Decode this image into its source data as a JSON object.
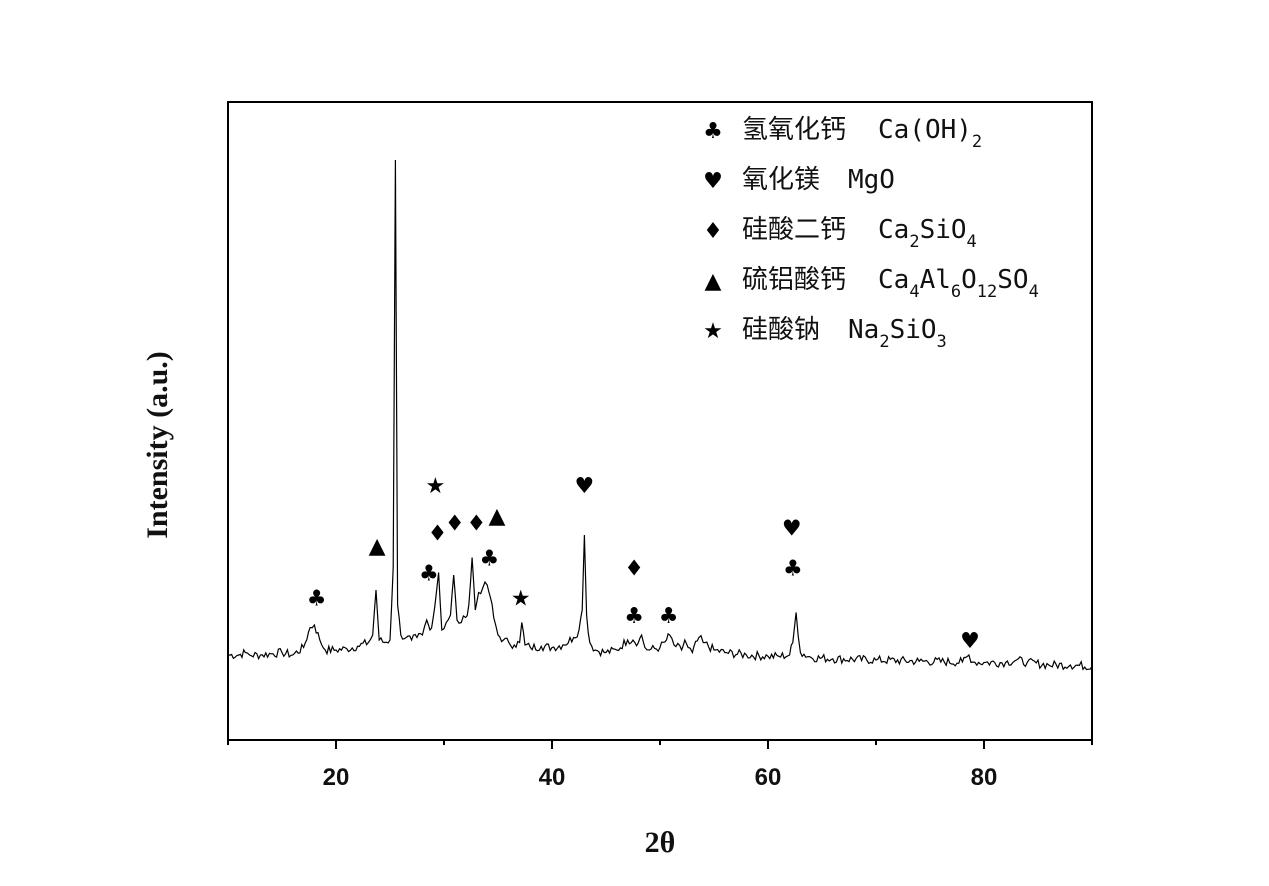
{
  "chart_data": {
    "type": "line",
    "xlabel": "2θ",
    "ylabel": "Intensity (a.u.)",
    "xlim": [
      10,
      90
    ],
    "x_ticks": [
      20,
      40,
      60,
      80
    ],
    "y_ticks_shown": false,
    "grid": false,
    "legend_position": "top-right",
    "series": [
      {
        "x": [
          10,
          11,
          11.6,
          12,
          13,
          14,
          15,
          16,
          17,
          17.6,
          18,
          18.5,
          19,
          20,
          21,
          22,
          23,
          23.4,
          23.7,
          24,
          24.5,
          25,
          25.3,
          25.5,
          25.7,
          26,
          26.5,
          27,
          27.5,
          28,
          28.4,
          28.7,
          29,
          29.3,
          29.5,
          29.8,
          30.2,
          30.6,
          30.9,
          31.2,
          31.6,
          32,
          32.3,
          32.6,
          32.9,
          33.2,
          33.6,
          34,
          34.3,
          34.6,
          35,
          35.5,
          36,
          36.5,
          37,
          37.2,
          37.5,
          38,
          39,
          40,
          41,
          42,
          42.5,
          42.8,
          43,
          43.2,
          43.5,
          44,
          45,
          46,
          47,
          47.5,
          48,
          48.3,
          48.6,
          49,
          50,
          50.6,
          50.9,
          51.3,
          52,
          52.3,
          52.6,
          53,
          53.6,
          54,
          55,
          56,
          58,
          60,
          61,
          62,
          62.3,
          62.6,
          63,
          64,
          66,
          70,
          74,
          78,
          78.6,
          79,
          80,
          82,
          83,
          84,
          86,
          88,
          90
        ],
        "y": [
          1.0,
          1.0,
          1.1,
          1.0,
          1.0,
          1.05,
          1.1,
          1.0,
          1.3,
          2.1,
          2.2,
          1.6,
          1.2,
          1.2,
          1.25,
          1.35,
          1.5,
          1.8,
          3.6,
          1.6,
          1.5,
          1.6,
          4.5,
          20.8,
          3.0,
          1.8,
          1.7,
          1.6,
          1.7,
          1.8,
          2.4,
          2.0,
          2.5,
          3.5,
          4.3,
          2.0,
          2.3,
          2.6,
          4.2,
          2.4,
          2.3,
          2.5,
          3.0,
          4.9,
          2.8,
          3.5,
          3.7,
          3.8,
          3.3,
          2.5,
          1.8,
          1.6,
          1.5,
          1.4,
          1.5,
          2.3,
          1.4,
          1.3,
          1.35,
          1.3,
          1.4,
          1.7,
          2.0,
          2.8,
          5.8,
          2.6,
          1.5,
          1.2,
          1.1,
          1.2,
          1.6,
          1.6,
          1.5,
          1.8,
          1.3,
          1.2,
          1.3,
          1.6,
          1.8,
          1.4,
          1.2,
          1.6,
          1.3,
          1.1,
          1.7,
          1.5,
          1.2,
          1.1,
          1.0,
          0.95,
          0.95,
          1.0,
          1.5,
          2.7,
          1.1,
          0.9,
          0.85,
          0.8,
          0.75,
          0.72,
          1.0,
          0.72,
          0.7,
          0.7,
          0.8,
          0.7,
          0.6,
          0.6,
          0.55
        ]
      }
    ],
    "peak_markers": [
      {
        "x": 18.2,
        "symbol": "♣",
        "y": 3.3
      },
      {
        "x": 23.8,
        "symbol": "▲",
        "y": 5.4
      },
      {
        "x": 28.6,
        "symbol": "♣",
        "y": 4.3
      },
      {
        "x": 29.2,
        "symbol": "★",
        "y": 7.8
      },
      {
        "x": 29.4,
        "symbol": "♦",
        "y": 5.9
      },
      {
        "x": 31.0,
        "symbol": "♦",
        "y": 6.3
      },
      {
        "x": 33.0,
        "symbol": "♦",
        "y": 6.3
      },
      {
        "x": 34.2,
        "symbol": "♣",
        "y": 4.9
      },
      {
        "x": 34.9,
        "symbol": "▲",
        "y": 6.6
      },
      {
        "x": 37.1,
        "symbol": "★",
        "y": 3.3
      },
      {
        "x": 43.0,
        "symbol": "♥",
        "y": 7.8
      },
      {
        "x": 47.6,
        "symbol": "♦",
        "y": 4.5
      },
      {
        "x": 47.6,
        "symbol": "♣",
        "y": 2.6
      },
      {
        "x": 50.8,
        "symbol": "♣",
        "y": 2.6
      },
      {
        "x": 62.2,
        "symbol": "♥",
        "y": 6.1
      },
      {
        "x": 62.3,
        "symbol": "♣",
        "y": 4.5
      },
      {
        "x": 78.7,
        "symbol": "♥",
        "y": 1.6
      }
    ],
    "legend": [
      {
        "symbol": "♣",
        "name": "氢氧化钙",
        "formula": [
          [
            "Ca(OH)",
            "n"
          ],
          [
            "2",
            "sub"
          ]
        ]
      },
      {
        "symbol": "♥",
        "name": "氧化镁",
        "formula": [
          [
            "MgO",
            "n"
          ]
        ]
      },
      {
        "symbol": "♦",
        "name": "硅酸二钙",
        "formula": [
          [
            "Ca",
            "n"
          ],
          [
            "2",
            "sub"
          ],
          [
            "SiO",
            "n"
          ],
          [
            "4",
            "sub"
          ]
        ]
      },
      {
        "symbol": "▲",
        "name": "硫铝酸钙",
        "formula": [
          [
            "Ca",
            "n"
          ],
          [
            "4",
            "sub"
          ],
          [
            "Al",
            "n"
          ],
          [
            "6",
            "sub"
          ],
          [
            "O",
            "n"
          ],
          [
            "12",
            "sub"
          ],
          [
            "SO",
            "n"
          ],
          [
            "4",
            "sub"
          ]
        ]
      },
      {
        "symbol": "★",
        "name": "硅酸钠",
        "formula": [
          [
            "Na",
            "n"
          ],
          [
            "2",
            "sub"
          ],
          [
            "SiO",
            "n"
          ],
          [
            "3",
            "sub"
          ]
        ]
      }
    ]
  }
}
